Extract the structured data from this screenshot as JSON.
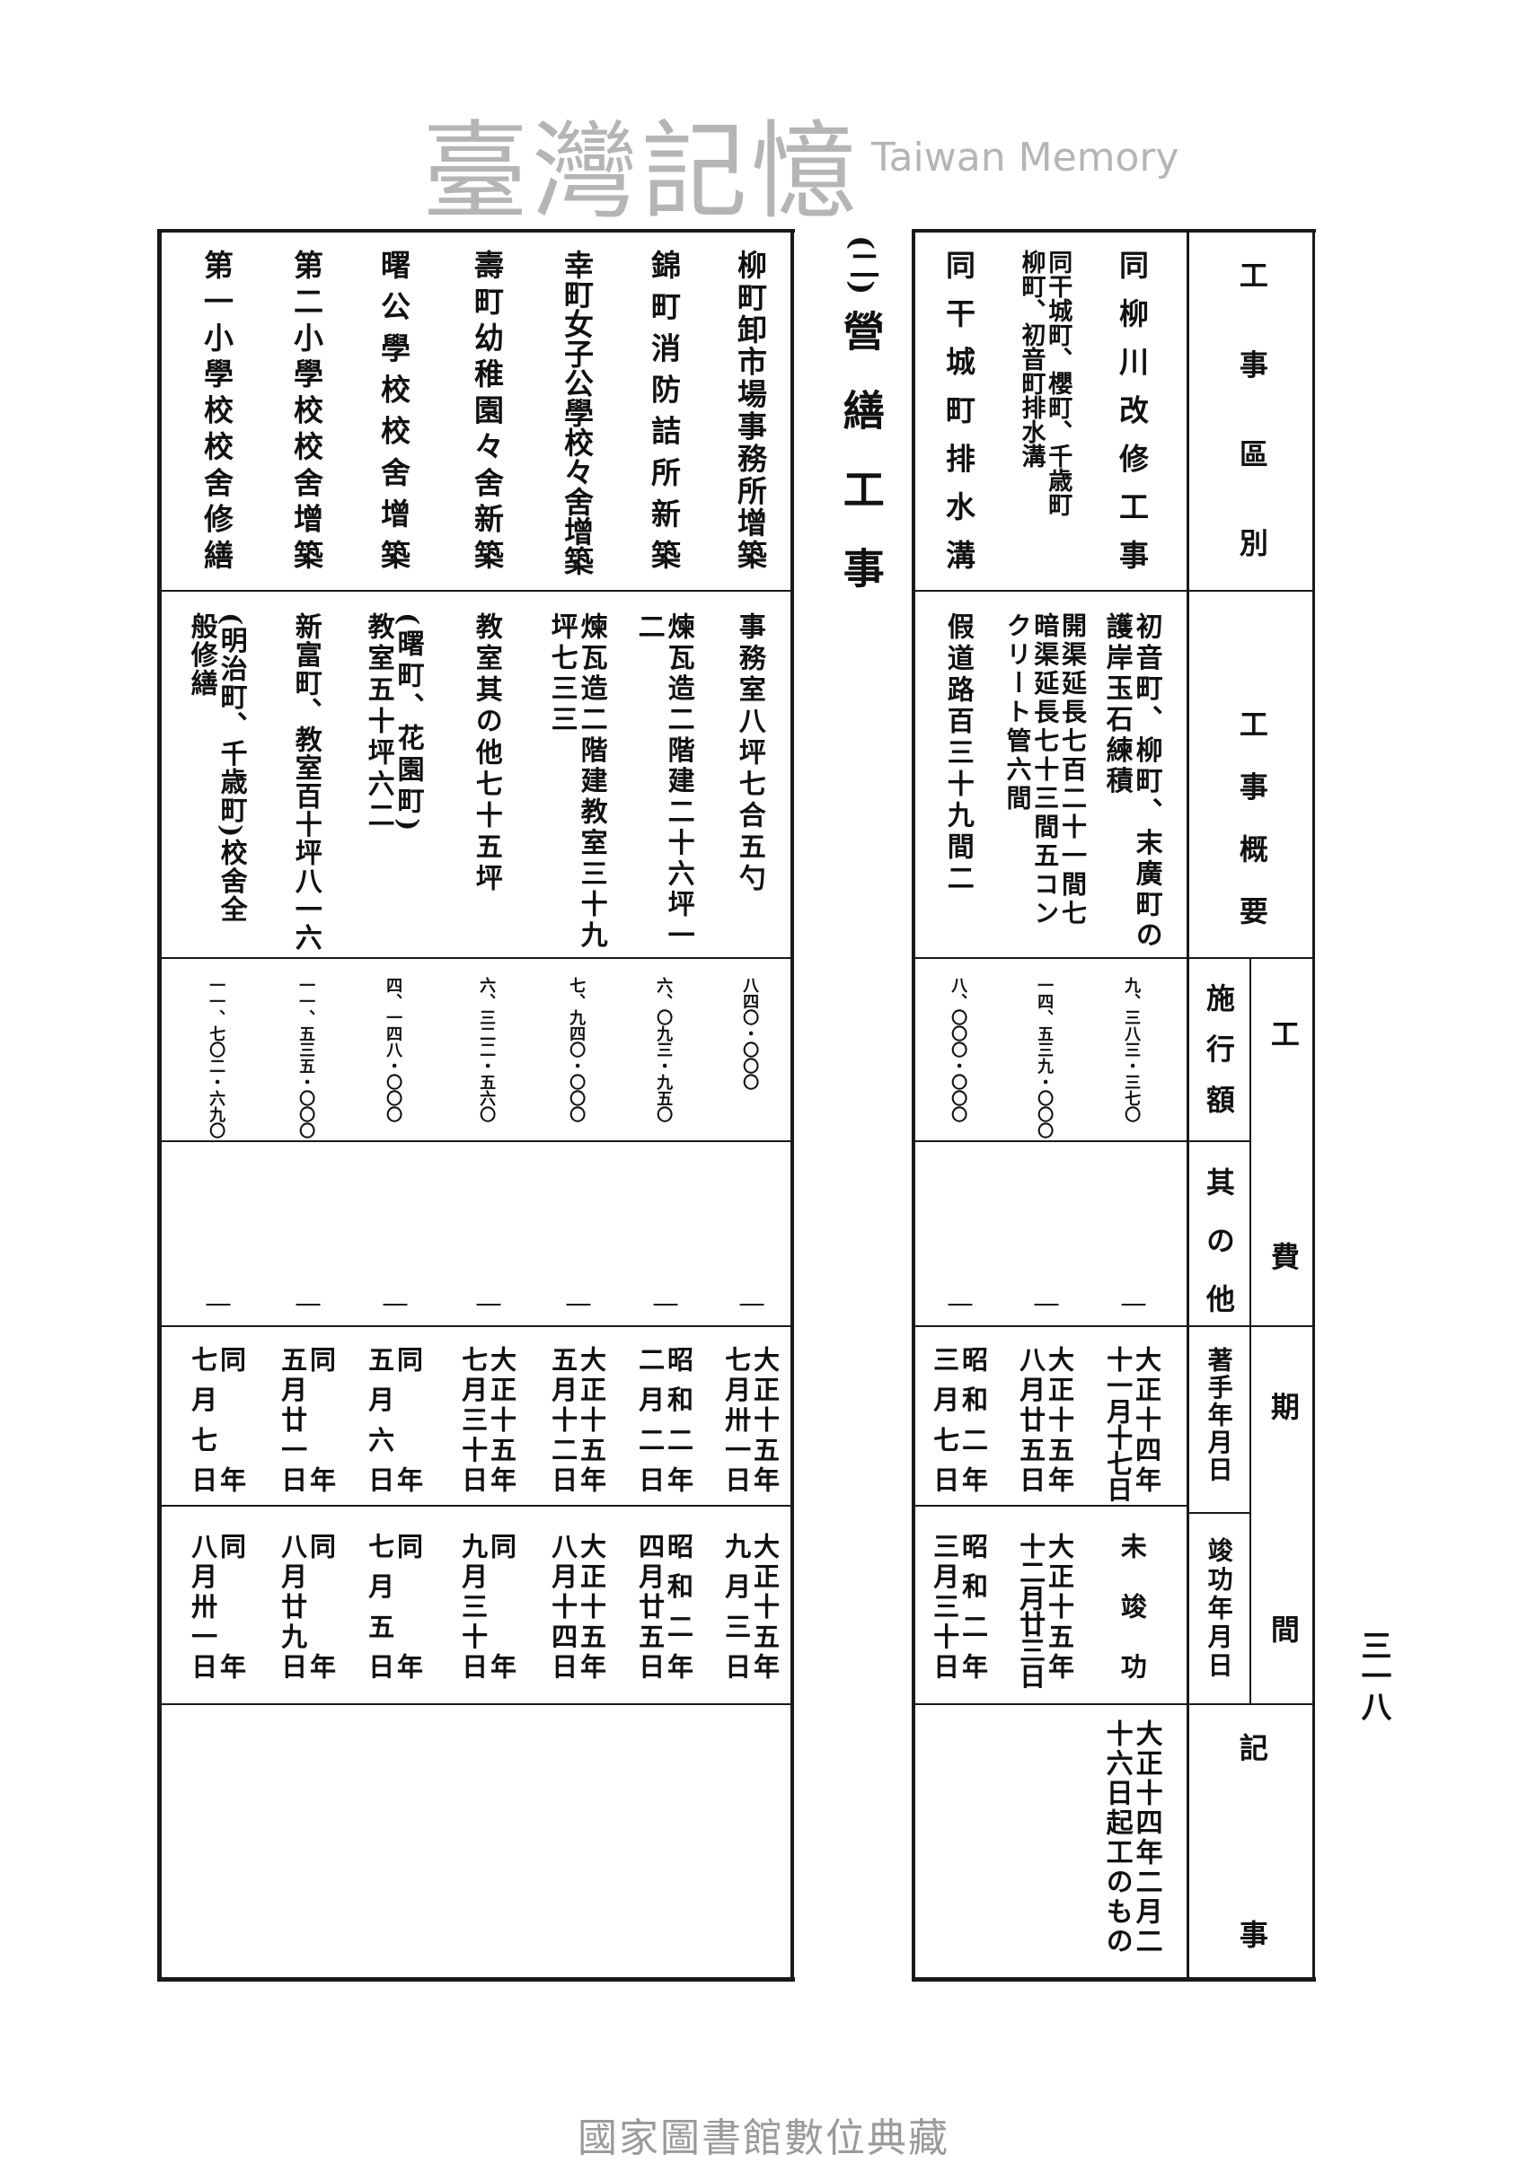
{
  "heading": {
    "number": "(二)",
    "title": "營繕工事"
  },
  "header": {
    "district": "工事區別",
    "outline": "工事概要",
    "cost": "工費",
    "cost_sub": [
      "施行額",
      "其の他"
    ],
    "period": "期間",
    "period_sub": [
      "著手年月日",
      "竣功年月日"
    ],
    "remarks": "記事"
  },
  "right_rows": [
    {
      "name": [
        "同柳川改修工事"
      ],
      "outline": [
        "初音町、柳町、末廣町の",
        "護岸玉石練積"
      ],
      "amount": "九、三八三・三七〇",
      "other": "｜",
      "start": [
        "大正十四年",
        "十一月十七日"
      ],
      "completion": [
        "未竣功"
      ],
      "remarks": [
        "大正十四年二月二",
        "十六日起工のもの"
      ]
    },
    {
      "name": [
        "同干城町、櫻町、千歳町",
        "柳町、初音町排水溝"
      ],
      "outline": [
        "開渠延長七百二十一間七",
        "暗渠延長七十三間五コン",
        "クリート管六間"
      ],
      "amount": "一四、五三九・〇〇〇",
      "other": "｜",
      "start": [
        "大正十五年",
        "八月廿五日"
      ],
      "completion": [
        "大正十五年",
        "十二月廿三日"
      ],
      "remarks": []
    },
    {
      "name": [
        "同干城町排水溝"
      ],
      "outline": [
        "假道路百三十九間二"
      ],
      "amount": "八、〇〇〇・〇〇〇",
      "other": "｜",
      "start": [
        "昭和二年",
        "三月七日"
      ],
      "completion": [
        "昭和二年",
        "三月三十日"
      ],
      "remarks": []
    }
  ],
  "left_rows": [
    {
      "name": [
        "柳町卸市場事務所增築"
      ],
      "outline": [
        "事務室八坪七合五勺"
      ],
      "amount": "八四〇・〇〇〇",
      "other": "｜",
      "start": [
        "大正十五年",
        "七月卅一日"
      ],
      "completion": [
        "大正十五年",
        "九月三日"
      ]
    },
    {
      "name": [
        "錦町消防詰所新築"
      ],
      "outline": [
        "煉瓦造二階建二十六坪一",
        "二"
      ],
      "amount": "六、〇九三・九五〇",
      "other": "｜",
      "start": [
        "昭和二年",
        "二月二日"
      ],
      "completion": [
        "昭和二年",
        "四月廿五日"
      ]
    },
    {
      "name": [
        "幸町女子公學校々舍增築"
      ],
      "outline": [
        "煉瓦造二階建教室三十九",
        "坪七三三"
      ],
      "amount": "七、九四〇・〇〇〇",
      "other": "｜",
      "start": [
        "大正十五年",
        "五月十二日"
      ],
      "completion": [
        "大正十五年",
        "八月十四日"
      ]
    },
    {
      "name": [
        "壽町幼稚園々舍新築"
      ],
      "outline": [
        "教室其の他七十五坪"
      ],
      "amount": "六、三二二・五六〇",
      "other": "｜",
      "start": [
        "大正十五年",
        "七月三十日"
      ],
      "completion": [
        "同年",
        "九月三十日"
      ]
    },
    {
      "name": [
        "曙公學校校舍增築"
      ],
      "outline": [
        "(曙町、花園町)",
        "教室五十坪六二"
      ],
      "amount": "四、一四八・〇〇〇",
      "other": "｜",
      "start": [
        "同年",
        "五月六日"
      ],
      "completion": [
        "同年",
        "七月五日"
      ]
    },
    {
      "name": [
        "第二小學校校舍增築"
      ],
      "outline": [
        "新富町、教室百十坪八一六"
      ],
      "amount": "一一、五三五・〇〇〇",
      "other": "｜",
      "start": [
        "同年",
        "五月廿一日"
      ],
      "completion": [
        "同年",
        "八月廿九日"
      ]
    },
    {
      "name": [
        "第一小學校校舍修繕"
      ],
      "outline": [
        "(明治町、千歳町)校舍全",
        "般修繕"
      ],
      "amount": "一一、七〇二・六九〇",
      "other": "｜",
      "start": [
        "同年",
        "七月七日"
      ],
      "completion": [
        "同年",
        "八月卅一日"
      ]
    }
  ],
  "page_number": "三一八",
  "watermark": {
    "cjk": "臺灣記憶",
    "latin": "Taiwan Memory"
  },
  "footer": "國家圖書館數位典藏"
}
